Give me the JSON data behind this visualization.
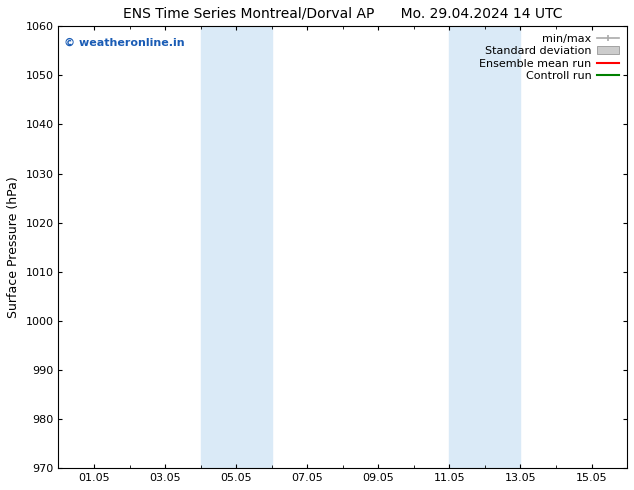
{
  "title_left": "ENS Time Series Montreal/Dorval AP",
  "title_right": "Mo. 29.04.2024 14 UTC",
  "ylabel": "Surface Pressure (hPa)",
  "ylim": [
    970,
    1060
  ],
  "yticks": [
    970,
    980,
    990,
    1000,
    1010,
    1020,
    1030,
    1040,
    1050,
    1060
  ],
  "xtick_labels": [
    "01.05",
    "03.05",
    "05.05",
    "07.05",
    "09.05",
    "11.05",
    "13.05",
    "15.05"
  ],
  "xtick_positions": [
    1,
    3,
    5,
    7,
    9,
    11,
    13,
    15
  ],
  "xlim": [
    0,
    16
  ],
  "shade_bands": [
    {
      "xmin": 4.0,
      "xmax": 6.0,
      "color": "#daeaf7"
    },
    {
      "xmin": 11.0,
      "xmax": 13.0,
      "color": "#daeaf7"
    }
  ],
  "watermark_text": "© weatheronline.in",
  "watermark_color": "#1a5cb5",
  "background_color": "#ffffff",
  "legend_items": [
    {
      "label": "min/max",
      "color": "#aaaaaa",
      "style": "line_with_caps"
    },
    {
      "label": "Standard deviation",
      "color": "#cccccc",
      "style": "filled_box"
    },
    {
      "label": "Ensemble mean run",
      "color": "#ff0000",
      "style": "line"
    },
    {
      "label": "Controll run",
      "color": "#008000",
      "style": "line"
    }
  ],
  "title_fontsize": 10,
  "ylabel_fontsize": 9,
  "tick_fontsize": 8,
  "legend_fontsize": 8,
  "watermark_fontsize": 8
}
